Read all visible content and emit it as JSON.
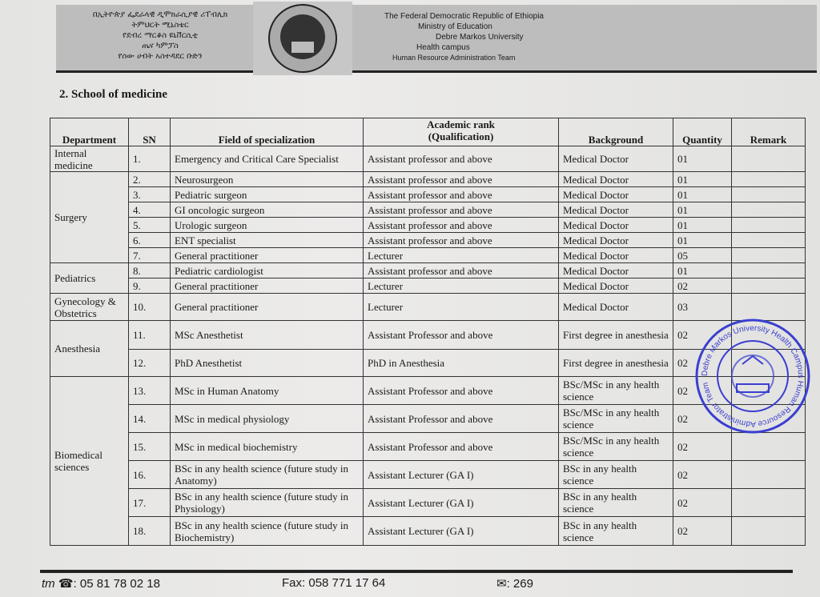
{
  "header": {
    "amharic_lines": [
      "በኢትዮጵያ ፌደራላዊ ዲሞክራሲያዊ ሪፐብሊክ",
      "ትምህርት ሚኒስቴር",
      "የደብረ ማርቆስ ዩኒቨርሲቲ",
      "ጤና ካምፓስ",
      "የሰው ሀብት አስተዳደር ቡድን"
    ],
    "english_lines": [
      "The Federal Democratic Republic of Ethiopia",
      "Ministry of Education",
      "Debre Markos University",
      "Health campus",
      "Human Resource Administration Team"
    ],
    "logo_text": "Debre Markos University"
  },
  "section_title": "2. School of medicine",
  "table": {
    "headers": {
      "department": "Department",
      "sn": "SN",
      "field": "Field of specialization",
      "rank": "Academic rank",
      "rank_sub": "(Qualification)",
      "background": "Background",
      "quantity": "Quantity",
      "remark": "Remark"
    },
    "departments": [
      "Internal medicine",
      "Surgery",
      "Pediatrics",
      "Gynecology & Obstetrics",
      "Anesthesia",
      "Biomedical sciences"
    ],
    "rows": [
      {
        "sn": "1.",
        "field": "Emergency and Critical Care Specialist",
        "rank": "Assistant professor and above",
        "background": "Medical Doctor",
        "quantity": "01"
      },
      {
        "sn": "2.",
        "field": "Neurosurgeon",
        "rank": "Assistant professor and above",
        "background": "Medical Doctor",
        "quantity": "01"
      },
      {
        "sn": "3.",
        "field": "Pediatric surgeon",
        "rank": "Assistant professor and above",
        "background": "Medical Doctor",
        "quantity": "01"
      },
      {
        "sn": "4.",
        "field": "GI oncologic surgeon",
        "rank": "Assistant professor and above",
        "background": "Medical Doctor",
        "quantity": "01"
      },
      {
        "sn": "5.",
        "field": "Urologic surgeon",
        "rank": "Assistant professor and above",
        "background": "Medical Doctor",
        "quantity": "01"
      },
      {
        "sn": "6.",
        "field": "ENT specialist",
        "rank": "Assistant professor and above",
        "background": "Medical Doctor",
        "quantity": "01"
      },
      {
        "sn": "7.",
        "field": "General practitioner",
        "rank": "Lecturer",
        "background": "Medical Doctor",
        "quantity": "05"
      },
      {
        "sn": "8.",
        "field": "Pediatric cardiologist",
        "rank": "Assistant professor and above",
        "background": "Medical Doctor",
        "quantity": "01"
      },
      {
        "sn": "9.",
        "field": "General practitioner",
        "rank": "Lecturer",
        "background": "Medical Doctor",
        "quantity": "02"
      },
      {
        "sn": "10.",
        "field": "General practitioner",
        "rank": "Lecturer",
        "background": "Medical Doctor",
        "quantity": "03"
      },
      {
        "sn": "11.",
        "field": "MSc Anesthetist",
        "rank": "Assistant Professor and above",
        "background": "First degree in anesthesia",
        "quantity": "02"
      },
      {
        "sn": "12.",
        "field": "PhD Anesthetist",
        "rank": "PhD in Anesthesia",
        "background": "First degree in anesthesia",
        "quantity": "02"
      },
      {
        "sn": "13.",
        "field": "MSc in Human Anatomy",
        "rank": "Assistant Professor and above",
        "background": "BSc/MSc in any health science",
        "quantity": "02"
      },
      {
        "sn": "14.",
        "field": "MSc in medical physiology",
        "rank": "Assistant Professor and above",
        "background": "BSc/MSc in any health science",
        "quantity": "02"
      },
      {
        "sn": "15.",
        "field": "MSc in medical biochemistry",
        "rank": "Assistant Professor and above",
        "background": "BSc/MSc in any health science",
        "quantity": "02"
      },
      {
        "sn": "16.",
        "field": "BSc in any health science (future study in Anatomy)",
        "rank": "Assistant Lecturer (GA I)",
        "background": "BSc in any health science",
        "quantity": "02"
      },
      {
        "sn": "17.",
        "field": "BSc in any health science (future study in Physiology)",
        "rank": "Assistant Lecturer (GA I)",
        "background": "BSc in any health science",
        "quantity": "02"
      },
      {
        "sn": "18.",
        "field": "BSc in any health science (future study in Biochemistry)",
        "rank": "Assistant Lecturer (GA I)",
        "background": "BSc in any health science",
        "quantity": "02"
      }
    ]
  },
  "stamp": {
    "text": "Debre Markos University Health Campus Human Resource Administrator Team",
    "color": "#3a3fd0"
  },
  "footer": {
    "tm": "tm",
    "phone_label": ":",
    "phone": "05 81 78 02 18",
    "fax_label": "Fax:",
    "fax": "058 771 17 64",
    "pobox_label": ":",
    "pobox": "269"
  }
}
